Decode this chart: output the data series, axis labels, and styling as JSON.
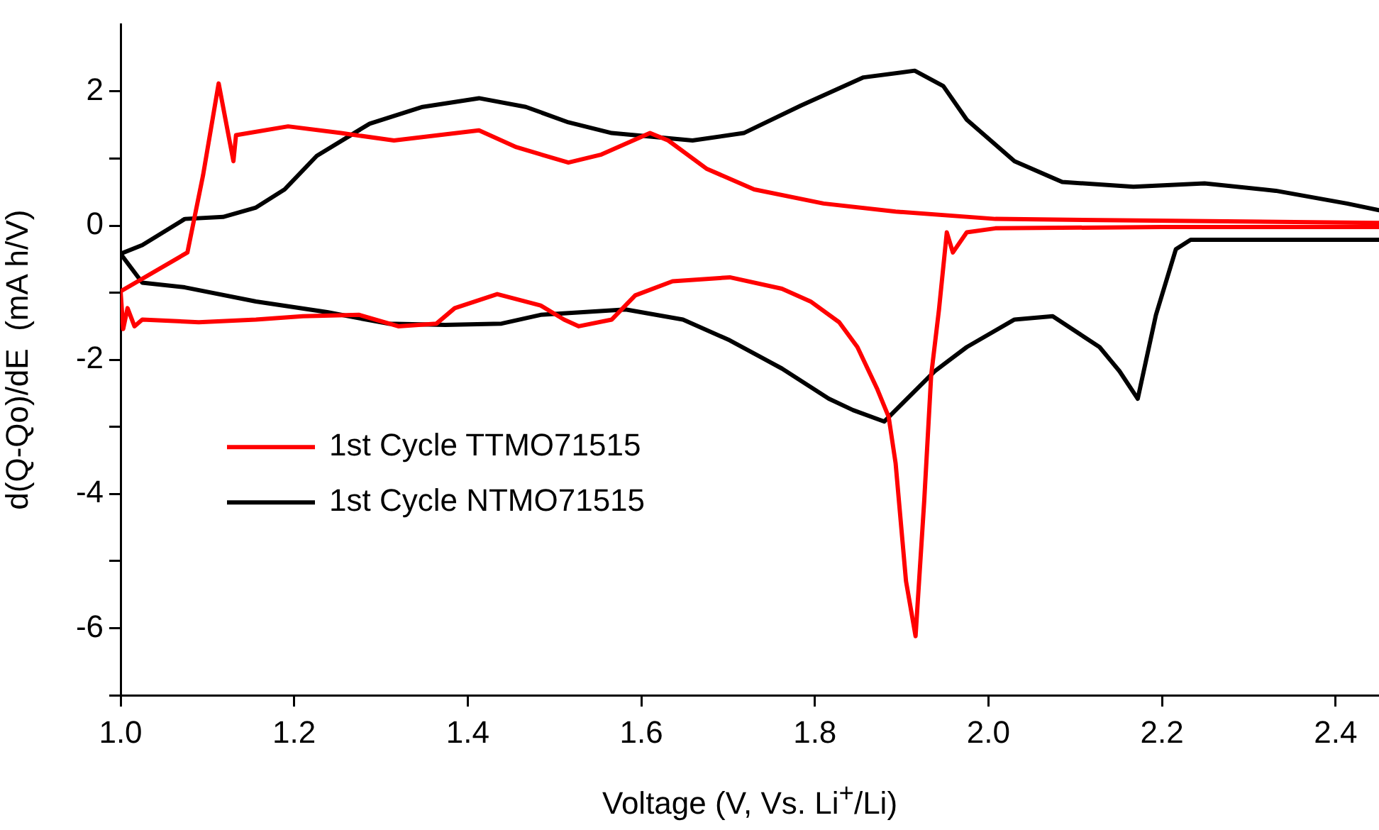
{
  "chart_data": {
    "type": "line",
    "xlabel": "Voltage (V, Vs. Li$^{+}$/Li)",
    "ylabel": "d(Q-Qo)/dE  (mA h/V)",
    "xlim": [
      1.0,
      2.45
    ],
    "xticks": [
      {
        "value": 1,
        "label": "1.0"
      },
      1.2,
      1.4,
      1.6,
      1.8,
      {
        "value": 2,
        "label": "2.0"
      },
      2.2,
      2.4
    ],
    "ylim": [
      -7,
      3
    ],
    "yticks": [
      {
        "value": -7,
        "label": null
      },
      -6,
      {
        "value": -5,
        "label": null
      },
      -4,
      {
        "value": -3,
        "label": null
      },
      -2,
      {
        "value": -1,
        "label": null
      },
      0,
      {
        "value": 1,
        "label": null
      },
      2
    ],
    "grid": false,
    "legend": "left",
    "marker": "none",
    "line_style": "solid",
    "series": [
      {
        "name": "1st Cycle TTMO71515",
        "color": "#ff0000",
        "x": [
          1.0,
          1.077,
          1.095,
          1.113,
          1.13,
          1.133,
          1.193,
          1.254,
          1.315,
          1.413,
          1.456,
          1.516,
          1.554,
          1.61,
          1.631,
          1.675,
          1.73,
          1.81,
          1.893,
          2.008,
          2.45
        ],
        "values": [
          -0.98,
          -0.4,
          0.75,
          2.12,
          0.96,
          1.35,
          1.48,
          1.38,
          1.27,
          1.42,
          1.17,
          0.94,
          1.06,
          1.38,
          1.27,
          0.85,
          0.54,
          0.33,
          0.21,
          0.1,
          0.04
        ]
      },
      {
        "color": "#ff0000",
        "x": [
          1.0,
          1.003,
          1.008,
          1.016,
          1.025,
          1.09,
          1.156,
          1.21,
          1.275,
          1.32,
          1.364,
          1.385,
          1.434,
          1.484,
          1.511,
          1.528,
          1.566,
          1.593,
          1.636,
          1.702,
          1.762,
          1.795,
          1.828,
          1.849,
          1.872,
          1.885,
          1.893,
          1.905,
          1.916,
          1.926,
          1.934,
          1.943,
          1.952,
          1.959,
          1.975,
          2.008,
          2.2,
          2.45
        ],
        "values": [
          -0.98,
          -1.54,
          -1.23,
          -1.5,
          -1.4,
          -1.44,
          -1.4,
          -1.35,
          -1.33,
          -1.5,
          -1.46,
          -1.23,
          -1.02,
          -1.19,
          -1.4,
          -1.5,
          -1.4,
          -1.04,
          -0.83,
          -0.77,
          -0.94,
          -1.13,
          -1.44,
          -1.81,
          -2.44,
          -2.85,
          -3.54,
          -5.3,
          -6.12,
          -4.1,
          -2.23,
          -1.25,
          -0.1,
          -0.4,
          -0.1,
          -0.04,
          -0.02,
          -0.02
        ]
      },
      {
        "name": "1st Cycle NTMO71515",
        "color": "#000000",
        "x": [
          1.0,
          1.025,
          1.074,
          1.118,
          1.156,
          1.189,
          1.226,
          1.287,
          1.348,
          1.413,
          1.467,
          1.516,
          1.566,
          1.659,
          1.718,
          1.784,
          1.856,
          1.915,
          1.948,
          1.975,
          2.03,
          2.085,
          2.167,
          2.249,
          2.331,
          2.413,
          2.45
        ],
        "values": [
          -0.42,
          -0.29,
          0.1,
          0.13,
          0.27,
          0.54,
          1.04,
          1.52,
          1.77,
          1.9,
          1.77,
          1.54,
          1.38,
          1.27,
          1.38,
          1.79,
          2.21,
          2.31,
          2.08,
          1.58,
          0.96,
          0.65,
          0.58,
          0.63,
          0.52,
          0.33,
          0.23
        ]
      },
      {
        "color": "#000000",
        "x": [
          1.0,
          1.025,
          1.074,
          1.156,
          1.238,
          1.308,
          1.374,
          1.439,
          1.484,
          1.582,
          1.648,
          1.702,
          1.762,
          1.816,
          1.844,
          1.88,
          1.938,
          1.975,
          2.03,
          2.074,
          2.128,
          2.151,
          2.172,
          2.193,
          2.216,
          2.233,
          2.45
        ],
        "values": [
          -0.42,
          -0.85,
          -0.92,
          -1.13,
          -1.29,
          -1.46,
          -1.48,
          -1.46,
          -1.33,
          -1.25,
          -1.4,
          -1.71,
          -2.13,
          -2.58,
          -2.75,
          -2.92,
          -2.17,
          -1.81,
          -1.4,
          -1.35,
          -1.81,
          -2.17,
          -2.58,
          -1.33,
          -0.35,
          -0.21,
          -0.21
        ]
      }
    ]
  }
}
